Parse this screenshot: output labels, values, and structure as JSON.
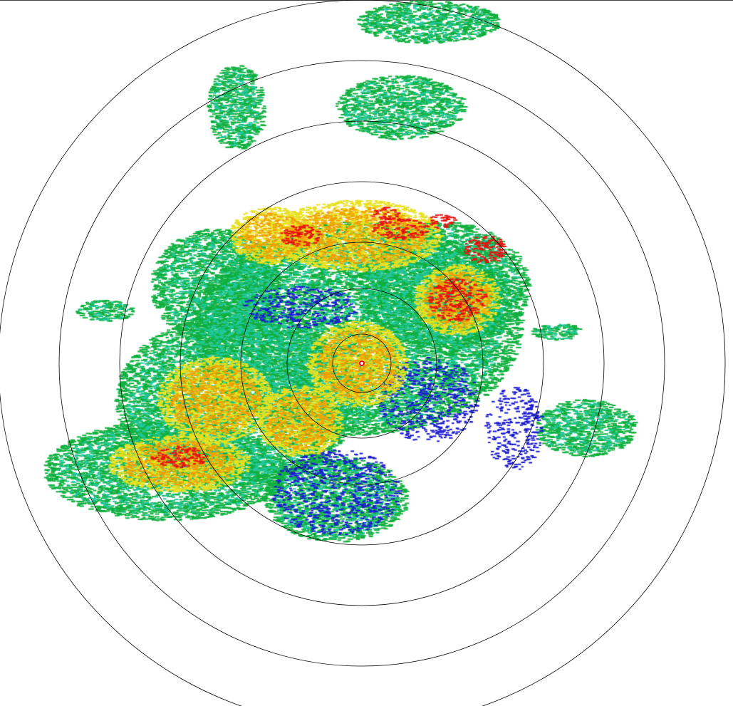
{
  "radar": {
    "product": "reflectivity-ppi",
    "range_rings": 7,
    "palette": {
      "weak": "#1a1ad0",
      "light": "#20c8a0",
      "moderate": "#10b040",
      "strong": "#e8e020",
      "heavy": "#f0a000",
      "intense": "#e81010"
    },
    "ring_color": "#000000",
    "background": "#ffffff"
  }
}
